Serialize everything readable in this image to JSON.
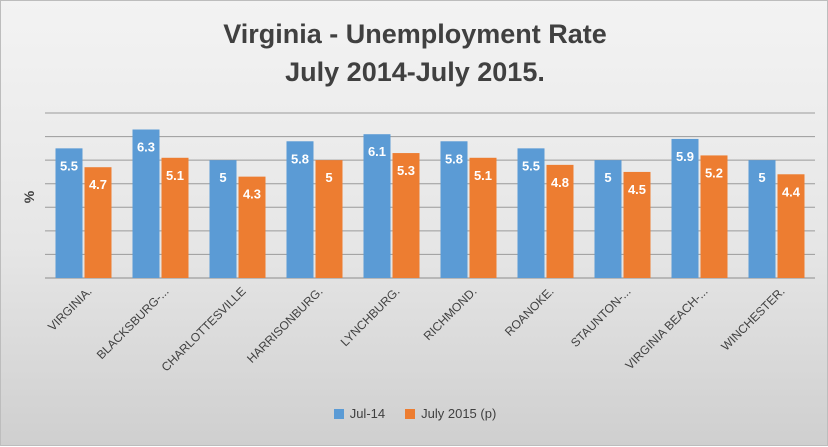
{
  "chart_data": {
    "type": "bar",
    "title_lines": [
      "Virginia - Unemployment Rate",
      "July 2014-July 2015."
    ],
    "ylabel": "%",
    "ylim": [
      0,
      7
    ],
    "grid": true,
    "legend_position": "bottom",
    "categories": [
      "VIRGINIA.",
      "BLACKSBURG-...",
      "CHARLOTTESVILLE",
      "HARRISONBURG.",
      "LYNCHBURG.",
      "RICHMOND.",
      "ROANOKE.",
      "STAUNTON-...",
      "VIRGINIA BEACH-...",
      "WINCHESTER."
    ],
    "series": [
      {
        "name": "Jul-14",
        "color": "#5b9bd5",
        "values": [
          5.5,
          6.3,
          5,
          5.8,
          6.1,
          5.8,
          5.5,
          5,
          5.9,
          5
        ]
      },
      {
        "name": "July 2015 (p)",
        "color": "#ed7d31",
        "values": [
          4.7,
          5.1,
          4.3,
          5,
          5.3,
          5.1,
          4.8,
          4.5,
          5.2,
          4.4
        ]
      }
    ]
  }
}
